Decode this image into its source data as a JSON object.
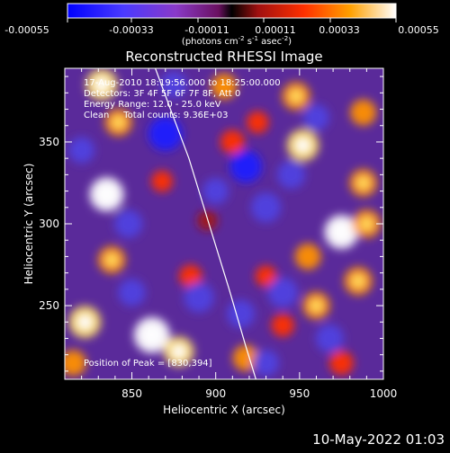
{
  "colorbar": {
    "tick_labels": [
      "-0.00055",
      "-0.00033",
      "-0.00011",
      "0.00011",
      "0.00033",
      "0.00055"
    ],
    "units_line": "(photons cm",
    "units_sup1": "-2",
    "units_mid": " s",
    "units_sup2": "-1",
    "units_mid2": " asec",
    "units_sup3": "-2",
    "units_end": ")"
  },
  "chart_data": {
    "type": "heatmap",
    "title": "Reconstructed RHESSI Image",
    "xlabel": "Heliocentric X (arcsec)",
    "ylabel": "Heliocentric Y (arcsec)",
    "xlim": [
      810,
      1000
    ],
    "ylim": [
      205,
      395
    ],
    "x_ticks": [
      850,
      900,
      950,
      1000
    ],
    "y_ticks": [
      250,
      300,
      350
    ],
    "colorbar_range": [
      -0.00055,
      0.00055
    ],
    "annotations": [
      "17-Aug-2010 18:19:56.000 to 18:25:00.000",
      "Detectors: 3F 4F 5F 6F 7F 8F, Att 0",
      "Energy Range: 12.0 - 25.0 keV",
      "Clean     Total counts: 9.36E+03"
    ],
    "peak_label": "Position of Peak = [830,394]",
    "peak": [
      830,
      394
    ],
    "limb_curve_x": [
      864,
      873,
      884,
      896,
      908,
      918,
      924
    ],
    "limb_curve_y": [
      395,
      370,
      340,
      300,
      260,
      225,
      205
    ],
    "intensity_blobs": [
      {
        "x": 832,
        "y": 385,
        "v": 0.00044
      },
      {
        "x": 842,
        "y": 362,
        "v": 0.00033
      },
      {
        "x": 835,
        "y": 318,
        "v": 0.0005
      },
      {
        "x": 868,
        "y": 326,
        "v": 0.00018
      },
      {
        "x": 838,
        "y": 278,
        "v": 0.00033
      },
      {
        "x": 822,
        "y": 240,
        "v": 0.00045
      },
      {
        "x": 862,
        "y": 232,
        "v": 0.00055
      },
      {
        "x": 878,
        "y": 222,
        "v": 0.0004
      },
      {
        "x": 885,
        "y": 268,
        "v": 0.00022
      },
      {
        "x": 905,
        "y": 384,
        "v": 0.0003
      },
      {
        "x": 910,
        "y": 350,
        "v": 0.00025
      },
      {
        "x": 925,
        "y": 362,
        "v": 0.0002
      },
      {
        "x": 948,
        "y": 378,
        "v": 0.00035
      },
      {
        "x": 952,
        "y": 348,
        "v": 0.00045
      },
      {
        "x": 988,
        "y": 368,
        "v": 0.0003
      },
      {
        "x": 988,
        "y": 325,
        "v": 0.00033
      },
      {
        "x": 975,
        "y": 295,
        "v": 0.0005
      },
      {
        "x": 990,
        "y": 300,
        "v": 0.00035
      },
      {
        "x": 955,
        "y": 280,
        "v": 0.0003
      },
      {
        "x": 985,
        "y": 265,
        "v": 0.00035
      },
      {
        "x": 960,
        "y": 250,
        "v": 0.00033
      },
      {
        "x": 918,
        "y": 218,
        "v": 0.0003
      },
      {
        "x": 940,
        "y": 238,
        "v": 0.00022
      },
      {
        "x": 930,
        "y": 268,
        "v": 0.00018
      },
      {
        "x": 975,
        "y": 215,
        "v": 0.00025
      },
      {
        "x": 815,
        "y": 215,
        "v": 0.0003
      },
      {
        "x": 895,
        "y": 302,
        "v": 0.00015
      },
      {
        "x": 870,
        "y": 355,
        "v": -0.0005
      },
      {
        "x": 918,
        "y": 335,
        "v": -0.00045
      },
      {
        "x": 930,
        "y": 310,
        "v": -0.0004
      },
      {
        "x": 945,
        "y": 330,
        "v": -0.00035
      },
      {
        "x": 900,
        "y": 320,
        "v": -0.0003
      },
      {
        "x": 890,
        "y": 255,
        "v": -0.0004
      },
      {
        "x": 915,
        "y": 245,
        "v": -0.00035
      },
      {
        "x": 940,
        "y": 258,
        "v": -0.0004
      },
      {
        "x": 848,
        "y": 300,
        "v": -0.00035
      },
      {
        "x": 850,
        "y": 258,
        "v": -0.00033
      },
      {
        "x": 960,
        "y": 365,
        "v": -0.0003
      },
      {
        "x": 968,
        "y": 230,
        "v": -0.00035
      },
      {
        "x": 930,
        "y": 215,
        "v": -0.0003
      },
      {
        "x": 820,
        "y": 345,
        "v": -0.0003
      },
      {
        "x": 875,
        "y": 385,
        "v": -0.0003
      }
    ]
  },
  "footer": {
    "timestamp": "10-May-2022 01:03"
  }
}
